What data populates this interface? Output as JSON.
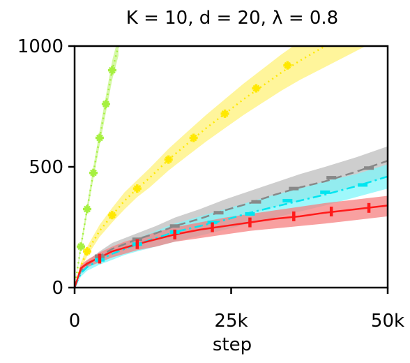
{
  "chart_data": {
    "type": "line",
    "title": "K = 10, d = 20, λ = 0.8",
    "xlabel": "step",
    "ylabel": "",
    "xlim": [
      0,
      50000
    ],
    "ylim": [
      0,
      1000
    ],
    "xticks": [
      0,
      25000,
      50000
    ],
    "xtick_labels": [
      "0",
      "25k",
      "50k"
    ],
    "yticks": [
      0,
      500,
      1000
    ],
    "ytick_labels": [
      "0",
      "500",
      "1000"
    ],
    "grid": false,
    "legend": "none",
    "series": [
      {
        "color": "#a6f040",
        "line_style": "dotted",
        "marker": "star",
        "band_color": "#c8f58a",
        "x": [
          0,
          1000,
          2000,
          3000,
          4000,
          5000,
          6000,
          7000
        ],
        "y": [
          0,
          170,
          325,
          475,
          620,
          760,
          900,
          1000
        ],
        "lower": [
          0,
          155,
          305,
          450,
          590,
          725,
          860,
          960
        ],
        "upper": [
          0,
          185,
          345,
          500,
          650,
          795,
          940,
          1040
        ],
        "marker_x": [
          1000,
          2000,
          3000,
          4000,
          5000,
          6000
        ],
        "marker_y": [
          170,
          325,
          475,
          620,
          760,
          900
        ]
      },
      {
        "color": "#ffe800",
        "line_style": "dotted",
        "marker": "star",
        "band_color": "#fff27a",
        "x": [
          0,
          1000,
          2000,
          4000,
          6000,
          8000,
          10000,
          12000,
          15000,
          18000,
          21000,
          24000,
          27000,
          30000,
          33000,
          36000,
          39000,
          42000,
          45000,
          50000
        ],
        "y": [
          0,
          90,
          150,
          235,
          300,
          360,
          410,
          455,
          530,
          595,
          660,
          720,
          780,
          835,
          890,
          940,
          985,
          1030,
          1070,
          1140
        ],
        "lower": [
          0,
          75,
          130,
          210,
          270,
          325,
          375,
          415,
          485,
          545,
          605,
          660,
          715,
          765,
          815,
          860,
          900,
          940,
          980,
          1045
        ],
        "upper": [
          0,
          105,
          170,
          260,
          330,
          395,
          445,
          495,
          575,
          645,
          715,
          780,
          845,
          905,
          965,
          1020,
          1070,
          1120,
          1160,
          1235
        ],
        "marker_x": [
          2000,
          6000,
          10000,
          15000,
          19000,
          24000,
          29000,
          34000
        ],
        "marker_y": [
          150,
          300,
          410,
          530,
          620,
          720,
          825,
          920
        ]
      },
      {
        "color": "#888888",
        "line_style": "dashed",
        "marker": "hbar",
        "band_color": "#bdbdbd",
        "x": [
          0,
          1000,
          2000,
          4000,
          6000,
          8000,
          10000,
          13000,
          16000,
          20000,
          24000,
          28000,
          32000,
          36000,
          40000,
          45000,
          50000
        ],
        "y": [
          0,
          70,
          95,
          130,
          160,
          180,
          200,
          225,
          255,
          285,
          320,
          350,
          385,
          415,
          440,
          480,
          525
        ],
        "lower": [
          0,
          55,
          80,
          110,
          135,
          155,
          170,
          195,
          220,
          245,
          275,
          305,
          335,
          360,
          385,
          420,
          460
        ],
        "upper": [
          0,
          85,
          110,
          150,
          185,
          205,
          225,
          255,
          290,
          325,
          365,
          400,
          435,
          470,
          500,
          540,
          585
        ],
        "marker_x": [
          4000,
          10000,
          16000,
          23000,
          29000,
          35000,
          41000,
          47000
        ],
        "marker_y": [
          130,
          200,
          255,
          310,
          355,
          410,
          455,
          495
        ]
      },
      {
        "color": "#00e5f0",
        "line_style": "dashdot",
        "marker": "hbar",
        "band_color": "#7ff5fa",
        "x": [
          0,
          1000,
          2000,
          4000,
          6000,
          8000,
          10000,
          13000,
          16000,
          20000,
          24000,
          28000,
          32000,
          36000,
          40000,
          45000,
          50000
        ],
        "y": [
          0,
          60,
          85,
          115,
          140,
          160,
          180,
          205,
          230,
          255,
          280,
          310,
          335,
          360,
          385,
          420,
          460
        ],
        "lower": [
          0,
          45,
          70,
          95,
          115,
          135,
          150,
          170,
          190,
          215,
          240,
          265,
          290,
          315,
          340,
          375,
          410
        ],
        "upper": [
          0,
          75,
          100,
          135,
          165,
          185,
          205,
          235,
          265,
          295,
          325,
          355,
          385,
          410,
          440,
          470,
          510
        ],
        "marker_x": [
          4000,
          10000,
          16000,
          22000,
          28000,
          34000,
          40000,
          46000
        ],
        "marker_y": [
          115,
          180,
          230,
          270,
          305,
          360,
          395,
          425
        ]
      },
      {
        "color": "#ff1a1a",
        "line_style": "solid",
        "marker": "vbar",
        "band_color": "#f58080",
        "x": [
          0,
          1000,
          2000,
          4000,
          6000,
          8000,
          10000,
          13000,
          16000,
          20000,
          24000,
          28000,
          32000,
          36000,
          40000,
          45000,
          50000
        ],
        "y": [
          0,
          80,
          100,
          125,
          150,
          165,
          180,
          200,
          220,
          240,
          255,
          270,
          285,
          295,
          310,
          325,
          340
        ],
        "lower": [
          0,
          65,
          85,
          105,
          125,
          140,
          155,
          170,
          190,
          205,
          220,
          235,
          245,
          255,
          265,
          280,
          295
        ],
        "upper": [
          0,
          95,
          115,
          145,
          170,
          190,
          205,
          230,
          250,
          270,
          290,
          305,
          320,
          335,
          350,
          365,
          380
        ],
        "marker_x": [
          4000,
          10000,
          16000,
          22000,
          28000,
          35000,
          41000,
          47000
        ],
        "marker_y": [
          120,
          180,
          220,
          250,
          270,
          295,
          315,
          330
        ]
      }
    ]
  }
}
